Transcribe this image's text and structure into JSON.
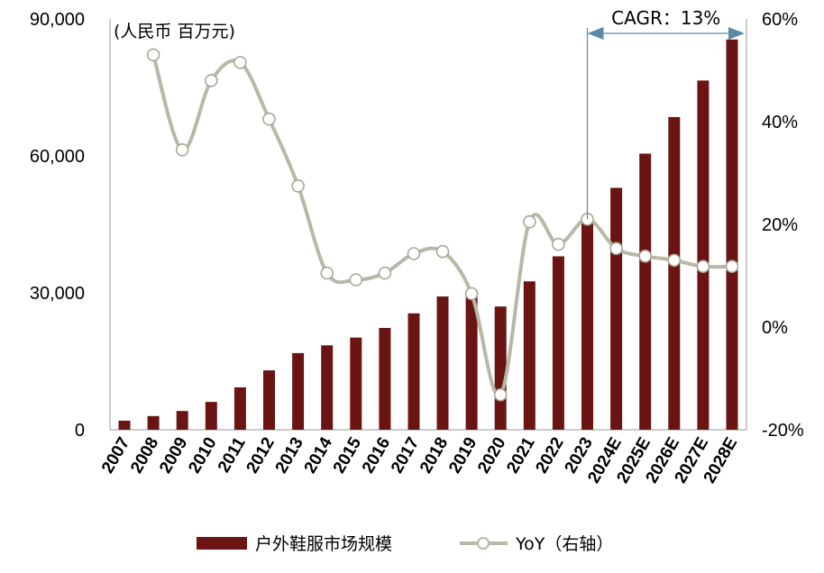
{
  "chart_data": {
    "type": "bar+line",
    "unit_label": "(人民币 百万元)",
    "categories": [
      "2007",
      "2008",
      "2009",
      "2010",
      "2011",
      "2012",
      "2013",
      "2014",
      "2015",
      "2016",
      "2017",
      "2018",
      "2019",
      "2020",
      "2021",
      "2022",
      "2023",
      "2024E",
      "2025E",
      "2026E",
      "2027E",
      "2028E"
    ],
    "series": [
      {
        "name": "户外鞋服市场规模",
        "type": "bar",
        "axis": "left",
        "color": "#6b1414",
        "values": [
          2000,
          3000,
          4100,
          6100,
          9300,
          13000,
          16800,
          18500,
          20200,
          22300,
          25500,
          29200,
          30000,
          27000,
          32500,
          38000,
          46500,
          53000,
          60500,
          68500,
          76500,
          85500
        ]
      },
      {
        "name": "YoY（右轴）",
        "type": "line",
        "axis": "right",
        "color": "#b8b8a8",
        "values": [
          null,
          53.0,
          34.5,
          48.0,
          51.5,
          40.5,
          27.5,
          10.5,
          9.2,
          10.5,
          14.3,
          14.7,
          6.5,
          -13.2,
          20.5,
          16.1,
          21.0,
          15.3,
          13.8,
          13.0,
          11.8,
          11.8
        ]
      }
    ],
    "y_left": {
      "min": 0,
      "max": 90000,
      "ticks": [
        "0",
        "30,000",
        "60,000",
        "90,000"
      ],
      "tick_values": [
        0,
        30000,
        60000,
        90000
      ]
    },
    "y_right": {
      "min": -20,
      "max": 60,
      "ticks": [
        "-20%",
        "0%",
        "20%",
        "40%",
        "60%"
      ],
      "tick_values": [
        -20,
        0,
        20,
        40,
        60
      ]
    },
    "annotation": {
      "text": "CAGR：13%",
      "from": "2023",
      "to": "2028E",
      "color": "#5a8aa5"
    },
    "legend_position": "bottom"
  }
}
